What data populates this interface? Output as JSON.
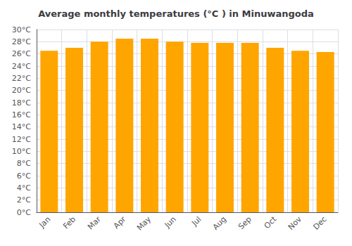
{
  "chart_data": {
    "type": "bar",
    "title": "Average monthly temperatures (°C ) in Minuwangoda",
    "categories": [
      "Jan",
      "Feb",
      "Mar",
      "Apr",
      "May",
      "Jun",
      "Jul",
      "Aug",
      "Sep",
      "Oct",
      "Nov",
      "Dec"
    ],
    "values": [
      26.5,
      27.0,
      28.0,
      28.5,
      28.5,
      28.0,
      27.8,
      27.8,
      27.8,
      27.0,
      26.5,
      26.3
    ],
    "color": "#FFA500",
    "ylim": [
      0,
      30
    ],
    "yticks": [
      {
        "value": 0,
        "label": "0°C"
      },
      {
        "value": 2,
        "label": "2°C"
      },
      {
        "value": 4,
        "label": "4°C"
      },
      {
        "value": 6,
        "label": "6°C"
      },
      {
        "value": 8,
        "label": "8°C"
      },
      {
        "value": 10,
        "label": "10°C"
      },
      {
        "value": 12,
        "label": "12°C"
      },
      {
        "value": 14,
        "label": "14°C"
      },
      {
        "value": 16,
        "label": "16°C"
      },
      {
        "value": 18,
        "label": "18°C"
      },
      {
        "value": 20,
        "label": "20°C"
      },
      {
        "value": 22,
        "label": "22°C"
      },
      {
        "value": 24,
        "label": "24°C"
      },
      {
        "value": 26,
        "label": "26°C"
      },
      {
        "value": 28,
        "label": "28°C"
      },
      {
        "value": 30,
        "label": "30°C"
      }
    ],
    "grid": true
  }
}
